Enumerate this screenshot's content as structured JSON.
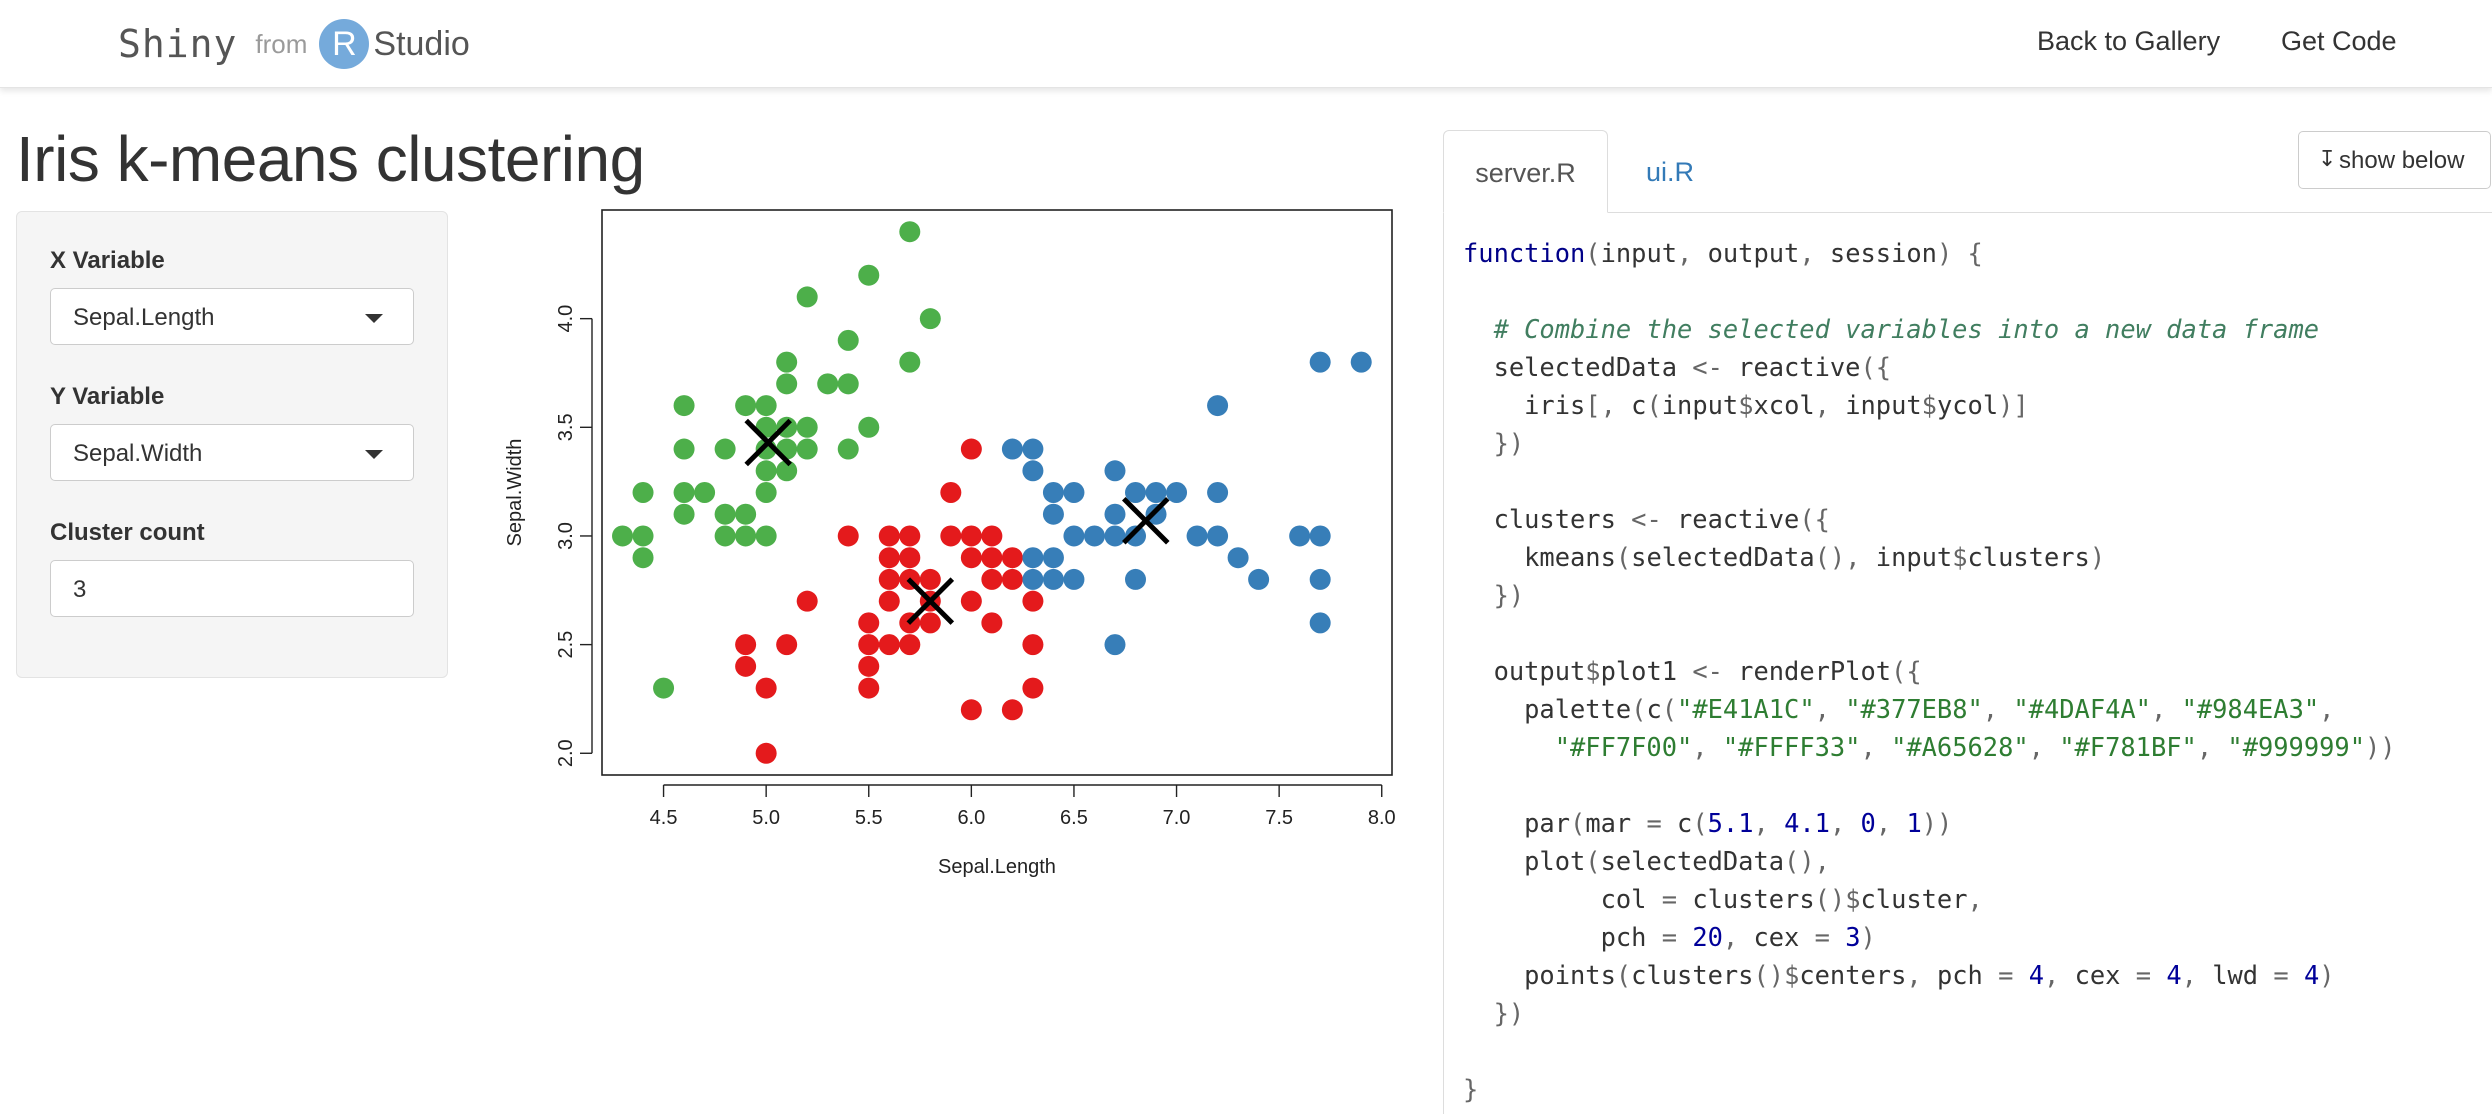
{
  "navbar": {
    "brand_shiny": "Shiny",
    "brand_from": "from",
    "brand_r": "R",
    "brand_studio": "Studio",
    "back_label": "Back to Gallery",
    "code_label": "Get Code"
  },
  "app": {
    "title": "Iris k-means clustering",
    "x_label": "X Variable",
    "x_value": "Sepal.Length",
    "y_label": "Y Variable",
    "y_value": "Sepal.Width",
    "k_label": "Cluster count",
    "k_value": "3"
  },
  "tabs": {
    "server": "server.R",
    "ui": "ui.R",
    "show_below": "show below",
    "show_below_icon": "down-arrow-icon"
  },
  "code_lines": [
    "function(input, output, session) {",
    "",
    "  # Combine the selected variables into a new data frame",
    "  selectedData <- reactive({",
    "    iris[, c(input$xcol, input$ycol)]",
    "  })",
    "",
    "  clusters <- reactive({",
    "    kmeans(selectedData(), input$clusters)",
    "  })",
    "",
    "  output$plot1 <- renderPlot({",
    "    palette(c(\"#E41A1C\", \"#377EB8\", \"#4DAF4A\", \"#984EA3\",",
    "      \"#FF7F00\", \"#FFFF33\", \"#A65628\", \"#F781BF\", \"#999999\"))",
    "",
    "    par(mar = c(5.1, 4.1, 0, 1))",
    "    plot(selectedData(),",
    "         col = clusters()$cluster,",
    "         pch = 20, cex = 3)",
    "    points(clusters()$centers, pch = 4, cex = 4, lwd = 4)",
    "  })",
    "",
    "}"
  ],
  "chart_data": {
    "type": "scatter",
    "title": "",
    "xlabel": "Sepal.Length",
    "ylabel": "Sepal.Width",
    "xlim": [
      4.2,
      8.05
    ],
    "ylim": [
      1.9,
      4.5
    ],
    "xticks": [
      "4.5",
      "5.0",
      "5.5",
      "6.0",
      "6.5",
      "7.0",
      "7.5",
      "8.0"
    ],
    "yticks": [
      "2.0",
      "2.5",
      "3.0",
      "3.5",
      "4.0"
    ],
    "colors": {
      "cluster_1": "#E41A1C",
      "cluster_2": "#377EB8",
      "cluster_3": "#4DAF4A"
    },
    "series": [
      {
        "cluster": 3,
        "color": "#4DAF4A",
        "points": [
          [
            4.3,
            3.0
          ],
          [
            4.4,
            2.9
          ],
          [
            4.4,
            3.0
          ],
          [
            4.4,
            3.2
          ],
          [
            4.5,
            2.3
          ],
          [
            4.6,
            3.1
          ],
          [
            4.6,
            3.2
          ],
          [
            4.6,
            3.4
          ],
          [
            4.6,
            3.6
          ],
          [
            4.7,
            3.2
          ],
          [
            4.8,
            3.0
          ],
          [
            4.8,
            3.1
          ],
          [
            4.8,
            3.4
          ],
          [
            4.9,
            3.0
          ],
          [
            4.9,
            3.1
          ],
          [
            4.9,
            3.6
          ],
          [
            5.0,
            3.0
          ],
          [
            5.0,
            3.2
          ],
          [
            5.0,
            3.3
          ],
          [
            5.0,
            3.4
          ],
          [
            5.0,
            3.5
          ],
          [
            5.0,
            3.6
          ],
          [
            5.1,
            3.3
          ],
          [
            5.1,
            3.4
          ],
          [
            5.1,
            3.5
          ],
          [
            5.1,
            3.7
          ],
          [
            5.1,
            3.8
          ],
          [
            5.2,
            3.4
          ],
          [
            5.2,
            3.5
          ],
          [
            5.2,
            4.1
          ],
          [
            5.3,
            3.7
          ],
          [
            5.4,
            3.4
          ],
          [
            5.4,
            3.7
          ],
          [
            5.4,
            3.9
          ],
          [
            5.5,
            3.5
          ],
          [
            5.5,
            4.2
          ],
          [
            5.7,
            3.8
          ],
          [
            5.7,
            4.4
          ],
          [
            5.8,
            4.0
          ]
        ]
      },
      {
        "cluster": 1,
        "color": "#E41A1C",
        "points": [
          [
            4.9,
            2.4
          ],
          [
            4.9,
            2.5
          ],
          [
            5.0,
            2.0
          ],
          [
            5.0,
            2.3
          ],
          [
            5.1,
            2.5
          ],
          [
            5.2,
            2.7
          ],
          [
            5.4,
            3.0
          ],
          [
            5.5,
            2.3
          ],
          [
            5.5,
            2.4
          ],
          [
            5.5,
            2.5
          ],
          [
            5.5,
            2.6
          ],
          [
            5.6,
            2.5
          ],
          [
            5.6,
            2.7
          ],
          [
            5.6,
            2.8
          ],
          [
            5.6,
            2.9
          ],
          [
            5.6,
            3.0
          ],
          [
            5.7,
            2.5
          ],
          [
            5.7,
            2.6
          ],
          [
            5.7,
            2.8
          ],
          [
            5.7,
            2.9
          ],
          [
            5.7,
            3.0
          ],
          [
            5.8,
            2.6
          ],
          [
            5.8,
            2.7
          ],
          [
            5.8,
            2.8
          ],
          [
            5.9,
            3.0
          ],
          [
            5.9,
            3.2
          ],
          [
            6.0,
            2.2
          ],
          [
            6.0,
            2.7
          ],
          [
            6.0,
            2.9
          ],
          [
            6.0,
            3.0
          ],
          [
            6.0,
            3.4
          ],
          [
            6.1,
            2.6
          ],
          [
            6.1,
            2.8
          ],
          [
            6.1,
            2.9
          ],
          [
            6.1,
            3.0
          ],
          [
            6.2,
            2.2
          ],
          [
            6.2,
            2.8
          ],
          [
            6.2,
            2.9
          ],
          [
            6.3,
            2.3
          ],
          [
            6.3,
            2.5
          ],
          [
            6.3,
            2.7
          ]
        ]
      },
      {
        "cluster": 2,
        "color": "#377EB8",
        "points": [
          [
            6.2,
            3.4
          ],
          [
            6.3,
            2.8
          ],
          [
            6.3,
            2.9
          ],
          [
            6.3,
            3.3
          ],
          [
            6.3,
            3.4
          ],
          [
            6.4,
            2.8
          ],
          [
            6.4,
            2.9
          ],
          [
            6.4,
            3.1
          ],
          [
            6.4,
            3.2
          ],
          [
            6.5,
            2.8
          ],
          [
            6.5,
            3.0
          ],
          [
            6.5,
            3.2
          ],
          [
            6.6,
            3.0
          ],
          [
            6.7,
            2.5
          ],
          [
            6.7,
            3.0
          ],
          [
            6.7,
            3.1
          ],
          [
            6.7,
            3.3
          ],
          [
            6.8,
            2.8
          ],
          [
            6.8,
            3.0
          ],
          [
            6.8,
            3.2
          ],
          [
            6.9,
            3.1
          ],
          [
            6.9,
            3.2
          ],
          [
            7.0,
            3.2
          ],
          [
            7.1,
            3.0
          ],
          [
            7.2,
            3.0
          ],
          [
            7.2,
            3.2
          ],
          [
            7.2,
            3.6
          ],
          [
            7.3,
            2.9
          ],
          [
            7.4,
            2.8
          ],
          [
            7.6,
            3.0
          ],
          [
            7.7,
            2.6
          ],
          [
            7.7,
            2.8
          ],
          [
            7.7,
            3.0
          ],
          [
            7.7,
            3.8
          ],
          [
            7.9,
            3.8
          ]
        ]
      }
    ],
    "centers": [
      [
        5.01,
        3.43
      ],
      [
        5.8,
        2.7
      ],
      [
        6.85,
        3.07
      ]
    ]
  }
}
